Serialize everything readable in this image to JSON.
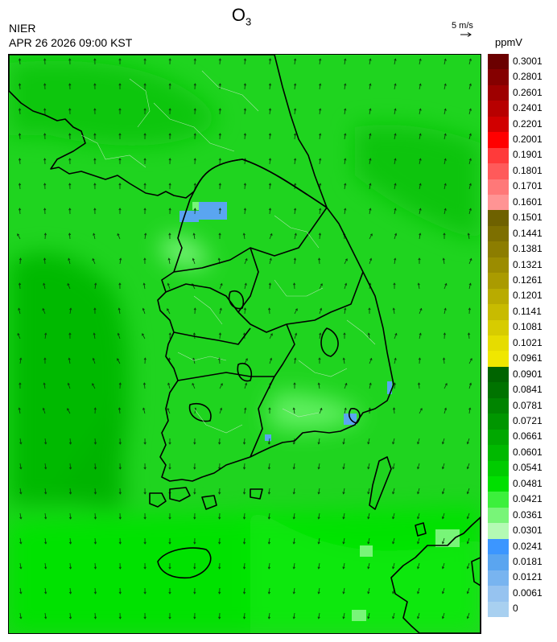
{
  "header": {
    "title_main": "O",
    "title_sub": "3",
    "agency": "NIER",
    "timestamp": "APR 26 2026 09:00 KST",
    "vector_scale_label": "5 m/s"
  },
  "legend": {
    "unit": "ppmV",
    "levels": [
      {
        "label": "0.3001",
        "color": "#6b0000"
      },
      {
        "label": "0.2801",
        "color": "#850000"
      },
      {
        "label": "0.2601",
        "color": "#9e0000"
      },
      {
        "label": "0.2401",
        "color": "#b80000"
      },
      {
        "label": "0.2201",
        "color": "#d10000"
      },
      {
        "label": "0.2001",
        "color": "#ff0000"
      },
      {
        "label": "0.1901",
        "color": "#ff3a3a"
      },
      {
        "label": "0.1801",
        "color": "#ff5a5a"
      },
      {
        "label": "0.1701",
        "color": "#ff7878"
      },
      {
        "label": "0.1601",
        "color": "#ff9494"
      },
      {
        "label": "0.1501",
        "color": "#6e6100"
      },
      {
        "label": "0.1441",
        "color": "#7d6f00"
      },
      {
        "label": "0.1381",
        "color": "#8c7d00"
      },
      {
        "label": "0.1321",
        "color": "#9b8c00"
      },
      {
        "label": "0.1261",
        "color": "#aa9b00"
      },
      {
        "label": "0.1201",
        "color": "#b9ab00"
      },
      {
        "label": "0.1141",
        "color": "#c8bb00"
      },
      {
        "label": "0.1081",
        "color": "#d7cc00"
      },
      {
        "label": "0.1021",
        "color": "#e6dc00"
      },
      {
        "label": "0.0961",
        "color": "#f0e700"
      },
      {
        "label": "0.0901",
        "color": "#006400"
      },
      {
        "label": "0.0841",
        "color": "#007300"
      },
      {
        "label": "0.0781",
        "color": "#008400"
      },
      {
        "label": "0.0721",
        "color": "#009600"
      },
      {
        "label": "0.0661",
        "color": "#00a800"
      },
      {
        "label": "0.0601",
        "color": "#00b900"
      },
      {
        "label": "0.0541",
        "color": "#00cc00"
      },
      {
        "label": "0.0481",
        "color": "#00e000"
      },
      {
        "label": "0.0421",
        "color": "#3cf03c"
      },
      {
        "label": "0.0361",
        "color": "#78f578"
      },
      {
        "label": "0.0301",
        "color": "#b4fab4"
      },
      {
        "label": "0.0241",
        "color": "#3c96ff"
      },
      {
        "label": "0.0181",
        "color": "#5aa5f0"
      },
      {
        "label": "0.0121",
        "color": "#78b4f0"
      },
      {
        "label": "0.0061",
        "color": "#96c3f0"
      },
      {
        "label": "0",
        "color": "#a8d0f0"
      }
    ]
  }
}
